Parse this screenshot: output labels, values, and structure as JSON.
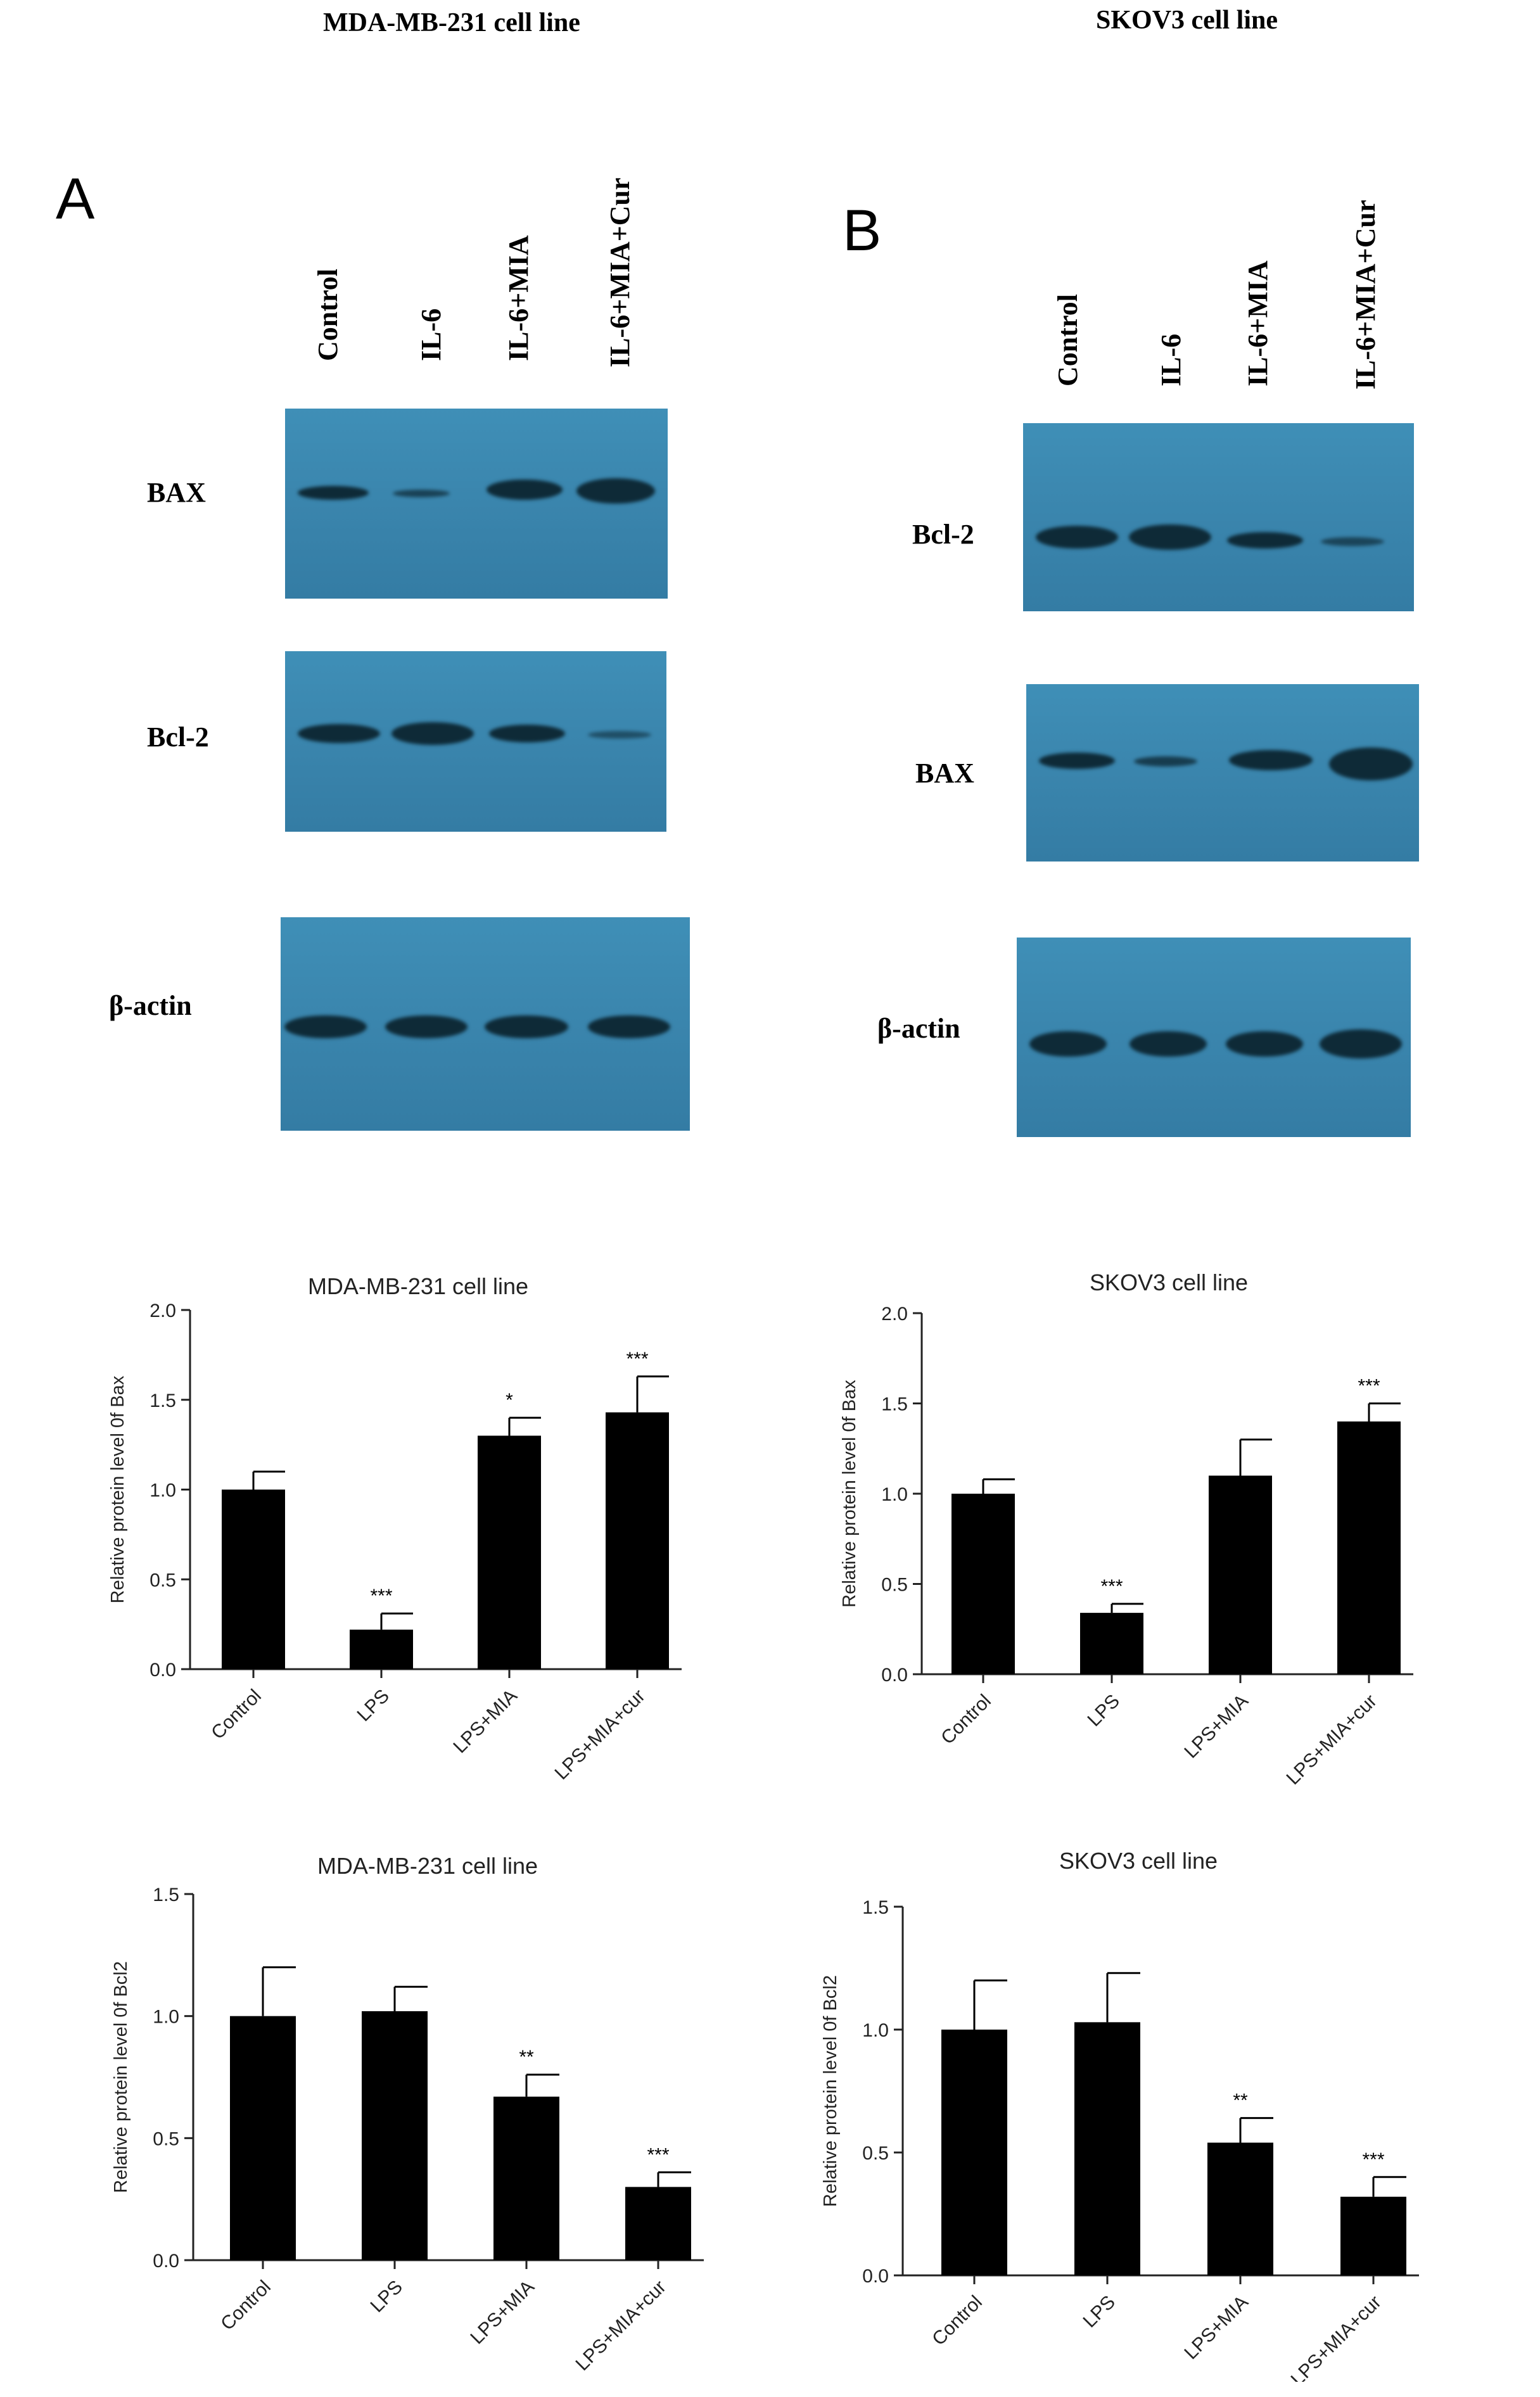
{
  "panel_a": {
    "title": "MDA-MB-231 cell line",
    "letter": "A",
    "lanes": [
      "Control",
      "IL-6",
      "IL-6+MIA",
      "IL-6+MIA+Cur"
    ],
    "blots": [
      "BAX",
      "Bcl-2",
      "β-actin"
    ]
  },
  "panel_b": {
    "title": "SKOV3 cell line",
    "letter": "B",
    "lanes": [
      "Control",
      "IL-6",
      "IL-6+MIA",
      "IL-6+MIA+Cur"
    ],
    "blots": [
      "Bcl-2",
      "BAX",
      "β-actin"
    ]
  },
  "colors": {
    "bar": "#000000",
    "blot_bg": "#3a85ad",
    "band": "#0e2a37"
  },
  "chart_data": [
    {
      "type": "bar",
      "title": "MDA-MB-231 cell line",
      "ylabel": "Relative protein level 0f Bax",
      "categories": [
        "Control",
        "LPS",
        "LPS+MIA",
        "LPS+MIA+cur"
      ],
      "values": [
        1.0,
        0.22,
        1.3,
        1.43
      ],
      "errors": [
        0.1,
        0.09,
        0.1,
        0.2
      ],
      "annotations": [
        "",
        "***",
        "*",
        "***"
      ],
      "ylim": [
        0,
        2.0
      ],
      "yticks": [
        "0.0",
        "0.5",
        "1.0",
        "1.5",
        "2.0"
      ]
    },
    {
      "type": "bar",
      "title": "SKOV3 cell line",
      "ylabel": "Relative protein level 0f Bax",
      "categories": [
        "Control",
        "LPS",
        "LPS+MIA",
        "LPS+MIA+cur"
      ],
      "values": [
        1.0,
        0.34,
        1.1,
        1.4
      ],
      "errors": [
        0.08,
        0.05,
        0.2,
        0.1
      ],
      "annotations": [
        "",
        "***",
        "",
        "***"
      ],
      "ylim": [
        0,
        2.0
      ],
      "yticks": [
        "0.0",
        "0.5",
        "1.0",
        "1.5",
        "2.0"
      ]
    },
    {
      "type": "bar",
      "title": "MDA-MB-231 cell line",
      "ylabel": "Relative protein level 0f Bcl2",
      "categories": [
        "Control",
        "LPS",
        "LPS+MIA",
        "LPS+MIA+cur"
      ],
      "values": [
        1.0,
        1.02,
        0.67,
        0.3
      ],
      "errors": [
        0.2,
        0.1,
        0.09,
        0.06
      ],
      "annotations": [
        "",
        "",
        "**",
        "***"
      ],
      "ylim": [
        0,
        1.5
      ],
      "yticks": [
        "0.0",
        "0.5",
        "1.0",
        "1.5"
      ]
    },
    {
      "type": "bar",
      "title": "SKOV3 cell line",
      "ylabel": "Relative protein level 0f Bcl2",
      "categories": [
        "Control",
        "LPS",
        "LPS+MIA",
        "LPS+MIA+cur"
      ],
      "values": [
        1.0,
        1.03,
        0.54,
        0.32
      ],
      "errors": [
        0.2,
        0.2,
        0.1,
        0.08
      ],
      "annotations": [
        "",
        "",
        "**",
        "***"
      ],
      "ylim": [
        0,
        1.5
      ],
      "yticks": [
        "0.0",
        "0.5",
        "1.0",
        "1.5"
      ]
    }
  ]
}
